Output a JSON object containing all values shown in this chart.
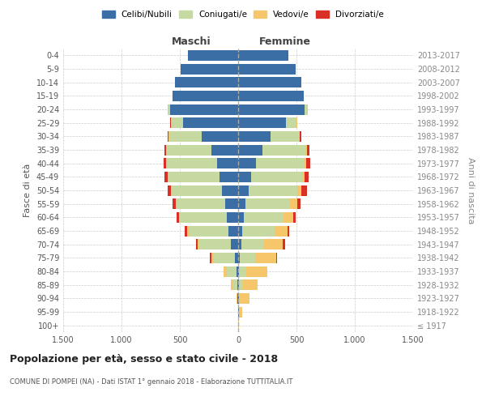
{
  "age_groups": [
    "100+",
    "95-99",
    "90-94",
    "85-89",
    "80-84",
    "75-79",
    "70-74",
    "65-69",
    "60-64",
    "55-59",
    "50-54",
    "45-49",
    "40-44",
    "35-39",
    "30-34",
    "25-29",
    "20-24",
    "15-19",
    "10-14",
    "5-9",
    "0-4"
  ],
  "birth_years": [
    "≤ 1917",
    "1918-1922",
    "1923-1927",
    "1928-1932",
    "1933-1937",
    "1938-1942",
    "1943-1947",
    "1948-1952",
    "1953-1957",
    "1958-1962",
    "1963-1967",
    "1968-1972",
    "1973-1977",
    "1978-1982",
    "1983-1987",
    "1988-1992",
    "1993-1997",
    "1998-2002",
    "2003-2007",
    "2008-2012",
    "2013-2017"
  ],
  "male": {
    "celibi": [
      2,
      2,
      5,
      10,
      15,
      30,
      60,
      80,
      100,
      110,
      140,
      160,
      180,
      230,
      310,
      470,
      580,
      560,
      540,
      490,
      430
    ],
    "coniugati": [
      0,
      0,
      5,
      30,
      80,
      180,
      270,
      340,
      400,
      420,
      430,
      440,
      430,
      380,
      280,
      100,
      20,
      5,
      2,
      0,
      0
    ],
    "vedovi": [
      0,
      0,
      5,
      20,
      30,
      20,
      20,
      20,
      10,
      8,
      5,
      5,
      5,
      5,
      5,
      5,
      5,
      0,
      0,
      0,
      0
    ],
    "divorziati": [
      0,
      0,
      0,
      0,
      0,
      10,
      10,
      15,
      20,
      25,
      30,
      30,
      25,
      20,
      10,
      5,
      0,
      0,
      0,
      0,
      0
    ]
  },
  "female": {
    "nubili": [
      2,
      5,
      5,
      10,
      10,
      15,
      25,
      35,
      50,
      65,
      90,
      110,
      150,
      210,
      280,
      410,
      570,
      560,
      540,
      490,
      430
    ],
    "coniugate": [
      0,
      2,
      10,
      30,
      60,
      130,
      200,
      280,
      340,
      380,
      420,
      440,
      420,
      370,
      240,
      90,
      20,
      5,
      2,
      0,
      0
    ],
    "vedove": [
      2,
      30,
      80,
      130,
      180,
      180,
      160,
      110,
      80,
      60,
      30,
      20,
      15,
      10,
      10,
      5,
      5,
      0,
      0,
      0,
      0
    ],
    "divorziate": [
      0,
      0,
      0,
      0,
      0,
      10,
      15,
      15,
      25,
      30,
      50,
      35,
      30,
      20,
      10,
      5,
      0,
      0,
      0,
      0,
      0
    ]
  },
  "colors": {
    "celibi_nubili": "#3A6EA5",
    "coniugati": "#C5D9A0",
    "vedovi": "#F5C76A",
    "divorziati": "#D93025"
  },
  "xlim": 1500,
  "xticks": [
    -1500,
    -1000,
    -500,
    0,
    500,
    1000,
    1500
  ],
  "xtick_labels": [
    "1.500",
    "1.000",
    "500",
    "0",
    "500",
    "1.000",
    "1.500"
  ],
  "title": "Popolazione per età, sesso e stato civile - 2018",
  "subtitle": "COMUNE DI POMPEI (NA) - Dati ISTAT 1° gennaio 2018 - Elaborazione TUTTITALIA.IT",
  "ylabel_left": "Fasce di età",
  "ylabel_right": "Anni di nascita",
  "header_maschi": "Maschi",
  "header_femmine": "Femmine",
  "legend_labels": [
    "Celibi/Nubili",
    "Coniugati/e",
    "Vedovi/e",
    "Divorziati/e"
  ],
  "background_color": "#ffffff",
  "grid_color": "#cccccc"
}
